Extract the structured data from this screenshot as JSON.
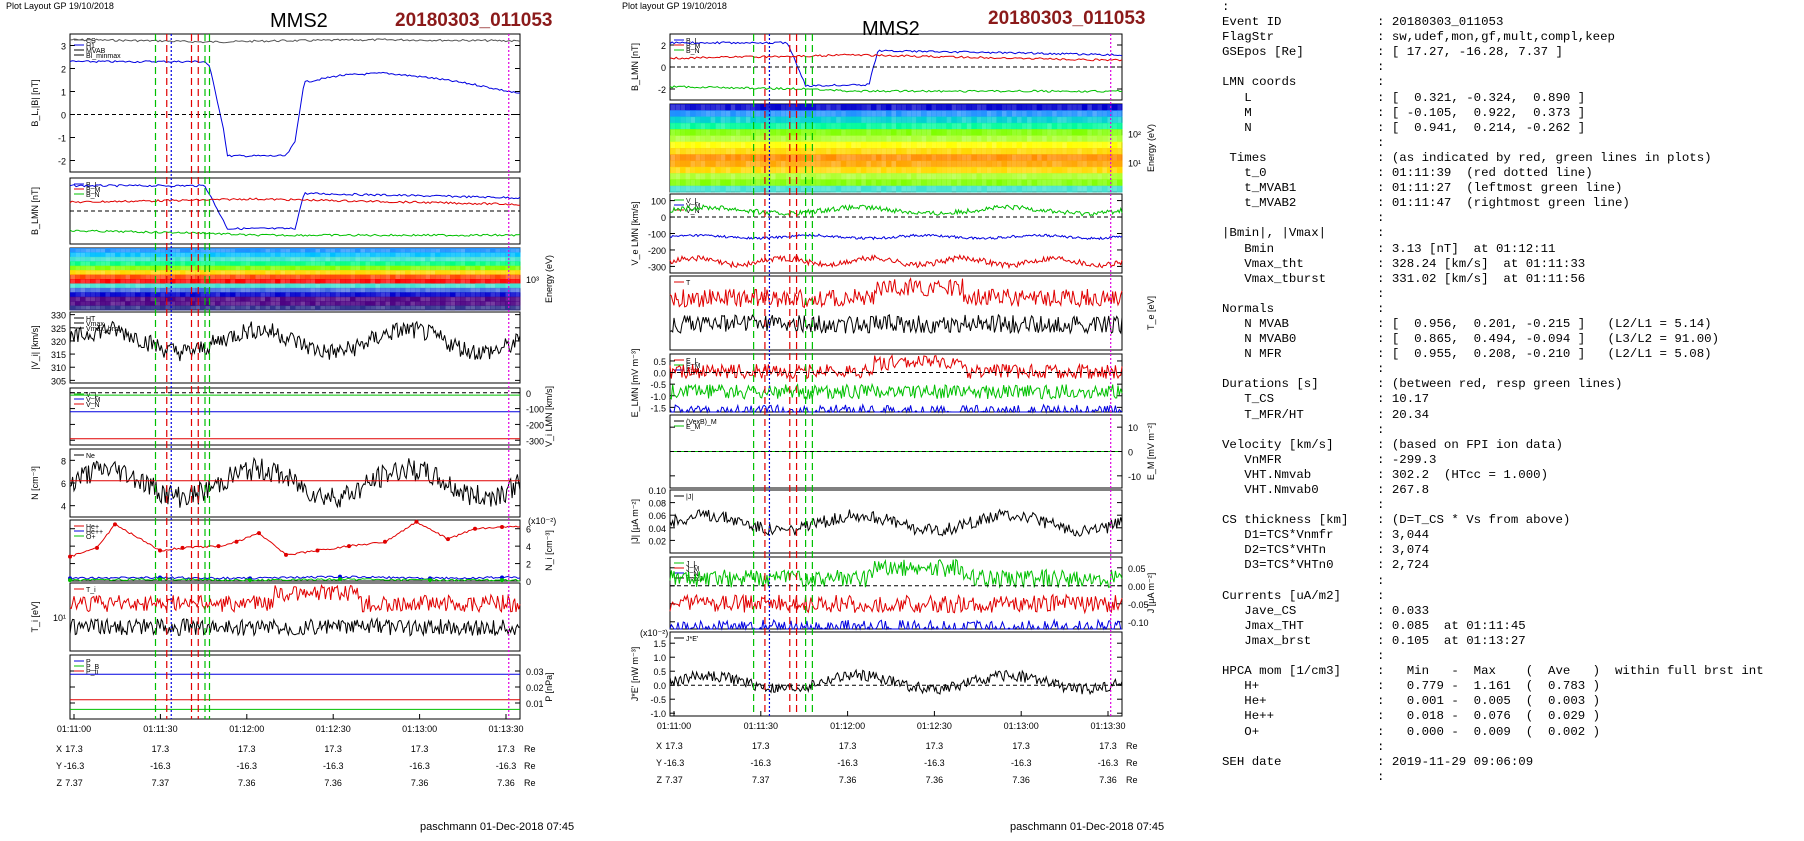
{
  "left_panel": {
    "header": "Plot Layout GP 19/10/2018",
    "spacecraft": "MMS2",
    "event": "20180303_011053",
    "footer": "paschmann 01-Dec-2018 07:45",
    "time_ticks": [
      "01:11:00",
      "01:11:30",
      "01:12:00",
      "01:12:30",
      "01:13:00",
      "01:13:30"
    ],
    "ephem": [
      {
        "label": "X",
        "values": [
          "17.3",
          "17.3",
          "17.3",
          "17.3",
          "17.3",
          "17.3"
        ],
        "unit": "Re"
      },
      {
        "label": "Y",
        "values": [
          "-16.3",
          "-16.3",
          "-16.3",
          "-16.3",
          "-16.3",
          "-16.3"
        ],
        "unit": "Re"
      },
      {
        "label": "Z",
        "values": [
          "7.37",
          "7.37",
          "7.36",
          "7.36",
          "7.36",
          "7.36"
        ],
        "unit": "Re"
      }
    ]
  },
  "right_panel": {
    "header": "Plot layout GP 19/10/2018",
    "spacecraft": "MMS2",
    "event": "20180303_011053",
    "footer": "paschmann 01-Dec-2018 07:45",
    "time_ticks": [
      "01:11:00",
      "01:11:30",
      "01:12:00",
      "01:12:30",
      "01:13:00",
      "01:13:30"
    ],
    "ephem": [
      {
        "label": "X",
        "values": [
          "17.3",
          "17.3",
          "17.3",
          "17.3",
          "17.3",
          "17.3"
        ],
        "unit": "Re"
      },
      {
        "label": "Y",
        "values": [
          "-16.3",
          "-16.3",
          "-16.3",
          "-16.3",
          "-16.3",
          "-16.3"
        ],
        "unit": "Re"
      },
      {
        "label": "Z",
        "values": [
          "7.37",
          "7.37",
          "7.36",
          "7.36",
          "7.36",
          "7.36"
        ],
        "unit": "Re"
      }
    ]
  },
  "summary": [
    [
      ":",
      ""
    ],
    [
      "Event ID",
      ": 20180303_011053"
    ],
    [
      "FlagStr",
      ": sw,udef,mon,gf,mult,compl,keep"
    ],
    [
      "GSEpos [Re]",
      ": [ 17.27, -16.28, 7.37 ]"
    ],
    [
      "",
      ":"
    ],
    [
      "LMN coords",
      ":"
    ],
    [
      "   L",
      ": [  0.321, -0.324,  0.890 ]"
    ],
    [
      "   M",
      ": [ -0.105,  0.922,  0.373 ]"
    ],
    [
      "   N",
      ": [  0.941,  0.214, -0.262 ]"
    ],
    [
      "",
      ":"
    ],
    [
      " Times",
      ": (as indicated by red, green lines in plots)"
    ],
    [
      "   t_0",
      ": 01:11:39  (red dotted line)"
    ],
    [
      "   t_MVAB1",
      ": 01:11:27  (leftmost green line)"
    ],
    [
      "   t_MVAB2",
      ": 01:11:47  (rightmost green line)"
    ],
    [
      "",
      ":"
    ],
    [
      "|Bmin|, |Vmax|",
      ":"
    ],
    [
      "   Bmin",
      ": 3.13 [nT]  at 01:12:11"
    ],
    [
      "   Vmax_tht",
      ": 328.24 [km/s]  at 01:11:33"
    ],
    [
      "   Vmax_tburst",
      ": 331.02 [km/s]  at 01:11:56"
    ],
    [
      "",
      ":"
    ],
    [
      "Normals",
      ":"
    ],
    [
      "   N MVAB",
      ": [  0.956,  0.201, -0.215 ]   (L2/L1 = 5.14)"
    ],
    [
      "   N MVAB0",
      ": [  0.865,  0.494, -0.094 ]   (L3/L2 = 91.00)"
    ],
    [
      "   N MFR",
      ": [  0.955,  0.208, -0.210 ]   (L2/L1 = 5.08)"
    ],
    [
      "",
      ":"
    ],
    [
      "Durations [s]",
      ": (between red, resp green lines)"
    ],
    [
      "   T_CS",
      ": 10.17"
    ],
    [
      "   T_MFR/HT",
      ": 20.34"
    ],
    [
      "",
      ":"
    ],
    [
      "Velocity [km/s]",
      ": (based on FPI ion data)"
    ],
    [
      "   VnMFR",
      ": -299.3"
    ],
    [
      "   VHT.Nmvab",
      ": 302.2  (HTcc = 1.000)"
    ],
    [
      "   VHT.Nmvab0",
      ": 267.8"
    ],
    [
      "",
      ":"
    ],
    [
      "CS thickness [km]",
      ": (D=T_CS * Vs from above)"
    ],
    [
      "   D1=TCS*Vnmfr",
      ": 3,044"
    ],
    [
      "   D2=TCS*VHTn",
      ": 3,074"
    ],
    [
      "   D3=TCS*VHTn0",
      ": 2,724"
    ],
    [
      "",
      ":"
    ],
    [
      "Currents [uA/m2]",
      ":"
    ],
    [
      "   Jave_CS",
      ": 0.033"
    ],
    [
      "   Jmax_THT",
      ": 0.085  at 01:11:45"
    ],
    [
      "   Jmax_brst",
      ": 0.105  at 01:13:27"
    ],
    [
      "",
      ":"
    ],
    [
      "HPCA mom [1/cm3]",
      ":   Min   -  Max    (  Ave   )  within full brst int"
    ],
    [
      "   H+",
      ":   0.779 -  1.161  (  0.783 )"
    ],
    [
      "   He+",
      ":   0.001 -  0.005  (  0.003 )"
    ],
    [
      "   He++",
      ":   0.018 -  0.076  (  0.029 )"
    ],
    [
      "   O+",
      ":   0.000 -  0.009  (  0.002 )"
    ],
    [
      "",
      ":"
    ],
    [
      "SEH date",
      ": 2019-11-29 09:06:09"
    ],
    [
      "",
      ":"
    ]
  ],
  "colors": {
    "red": "#e00000",
    "blue": "#0000e0",
    "green": "#00c000",
    "black": "#000000",
    "gray": "#555555",
    "magenta": "#e000e0",
    "title_red": "#8b1a1a"
  },
  "chart_data": [
    {
      "type": "line",
      "panel": "left",
      "ylabel": "B_L,|B| [nT]",
      "ylim": [
        -2.5,
        3.5
      ],
      "yticks": [
        "-2",
        "-1",
        "0",
        "1",
        "2",
        "3"
      ],
      "legend": [
        "CS",
        "H1",
        "MVAB",
        "Bl_minmax"
      ],
      "series": [
        {
          "name": "|B|",
          "color": "gray",
          "x": [
            0,
            0.2,
            0.3,
            0.45,
            0.7,
            1.0
          ],
          "y": [
            3.25,
            3.2,
            3.15,
            3.2,
            3.25,
            3.2
          ]
        },
        {
          "name": "B_L",
          "color": "blue",
          "x": [
            0,
            0.3,
            0.31,
            0.34,
            0.35,
            0.48,
            0.5,
            0.52,
            0.6,
            0.7,
            0.8,
            0.9,
            1.0
          ],
          "y": [
            2.3,
            2.3,
            2.1,
            -0.5,
            -1.8,
            -1.8,
            -1.2,
            1.4,
            1.7,
            1.8,
            1.6,
            1.3,
            0.9
          ]
        }
      ]
    },
    {
      "type": "line",
      "panel": "left",
      "ylabel": "B_LMN [nT]",
      "ylim": [
        -3,
        3
      ],
      "legend": [
        "B_L",
        "B_M",
        "B_N"
      ],
      "series": [
        {
          "name": "B_L",
          "color": "blue",
          "x": [
            0,
            0.3,
            0.35,
            0.5,
            0.52,
            1.0
          ],
          "y": [
            2.3,
            2.3,
            -1.6,
            -1.6,
            1.6,
            1.2
          ]
        },
        {
          "name": "B_M",
          "color": "red",
          "x": [
            0,
            0.3,
            0.4,
            1.0
          ],
          "y": [
            0.8,
            1.0,
            1.1,
            0.6
          ]
        },
        {
          "name": "B_N",
          "color": "green",
          "x": [
            0,
            0.3,
            0.4,
            1.0
          ],
          "y": [
            -1.8,
            -2.0,
            -2.2,
            -2.2
          ]
        }
      ]
    },
    {
      "type": "heatmap",
      "panel": "left",
      "ylabel": "Energy (eV)",
      "yticks": [
        "10³"
      ]
    },
    {
      "type": "line",
      "panel": "left",
      "ylabel": "|V_i| [km/s]",
      "ylim": [
        304,
        331
      ],
      "yticks": [
        "305",
        "310",
        "315",
        "320",
        "325",
        "330"
      ],
      "legend": [
        "HT",
        "Vmax",
        "Vmax_brst"
      ],
      "series": [
        {
          "name": "|V_i|",
          "color": "black",
          "mean": 320,
          "amp": 7
        }
      ]
    },
    {
      "type": "line",
      "panel": "left",
      "ylabel": "V_i LMN [km/s]",
      "ylim": [
        -330,
        30
      ],
      "yticks": [
        "0",
        "-100",
        "-200",
        "-300"
      ],
      "legend": [
        "V_L",
        "V_M",
        "V_N"
      ],
      "series": [
        {
          "name": "V_L",
          "color": "green",
          "mean": -15
        },
        {
          "name": "V_M",
          "color": "blue",
          "mean": -120
        },
        {
          "name": "V_N",
          "color": "red",
          "mean": -290
        }
      ]
    },
    {
      "type": "line",
      "panel": "left",
      "ylabel": "N [cm⁻³]",
      "ylim": [
        3,
        9
      ],
      "yticks": [
        "4",
        "6",
        "8"
      ],
      "legend": [
        "Ne"
      ],
      "series": [
        {
          "name": "N_i",
          "color": "black",
          "mean": 6,
          "amp": 2
        },
        {
          "name": "Ne",
          "color": "red",
          "mean": 6.2
        }
      ]
    },
    {
      "type": "line",
      "panel": "left",
      "ylabel": "N_i [cm⁻³]",
      "yunit": "(x10⁻²)",
      "ylim": [
        0,
        7
      ],
      "yticks": [
        "0",
        "2",
        "4",
        "6"
      ],
      "legend": [
        "He+",
        "He++",
        "O+"
      ],
      "series": [
        {
          "name": "He++",
          "color": "red",
          "x": [
            0.0,
            0.06,
            0.1,
            0.2,
            0.25,
            0.33,
            0.37,
            0.42,
            0.48,
            0.55,
            0.62,
            0.7,
            0.77,
            0.84,
            0.9,
            0.96
          ],
          "y": [
            2.8,
            3.8,
            6.5,
            3.5,
            3.8,
            4.0,
            4.5,
            5.5,
            3.0,
            3.5,
            4.0,
            4.5,
            6.8,
            4.8,
            6.0,
            6.2
          ]
        },
        {
          "name": "O+",
          "color": "blue",
          "x": [
            0,
            0.2,
            0.4,
            0.6,
            0.8,
            0.96
          ],
          "y": [
            0.3,
            0.4,
            0.3,
            0.5,
            0.3,
            0.4
          ]
        },
        {
          "name": "He+",
          "color": "green",
          "x": [
            0,
            0.2,
            0.4,
            0.6,
            0.8,
            0.96
          ],
          "y": [
            0.1,
            0.2,
            0.1,
            0.2,
            0.1,
            0.1
          ]
        }
      ]
    },
    {
      "type": "line",
      "panel": "left",
      "ylabel": "T_i [eV]",
      "yticks": [
        "10¹"
      ],
      "legend": [
        "T_i"
      ],
      "series": [
        {
          "name": "T_i",
          "color": "red"
        },
        {
          "color": "black"
        }
      ]
    },
    {
      "type": "line",
      "panel": "left",
      "ylabel": "P [nPa]",
      "ylim": [
        0.0,
        0.04
      ],
      "yticks": [
        "0.01",
        "0.02",
        "0.03"
      ],
      "legend": [
        "P",
        "P_B",
        "P_ti"
      ],
      "series": [
        {
          "color": "blue",
          "mean": 0.028
        },
        {
          "color": "green",
          "mean": 0.006
        },
        {
          "color": "red",
          "mean": 0.012
        }
      ]
    },
    {
      "type": "line",
      "panel": "right",
      "ylabel": "B_LMN [nT]",
      "ylim": [
        -3,
        3
      ],
      "yticks": [
        "-2",
        "0",
        "2"
      ],
      "legend": [
        "B_L",
        "B_M",
        "B_N"
      ],
      "series": [
        {
          "name": "B_L",
          "color": "blue",
          "x": [
            0,
            0.26,
            0.3,
            0.44,
            0.46,
            1.0
          ],
          "y": [
            2.2,
            2.2,
            -1.7,
            -1.6,
            1.5,
            1.1
          ]
        },
        {
          "name": "B_M",
          "color": "red",
          "x": [
            0,
            0.3,
            0.4,
            1.0
          ],
          "y": [
            0.8,
            1.0,
            1.1,
            0.6
          ]
        },
        {
          "name": "B_N",
          "color": "green",
          "x": [
            0,
            0.3,
            0.4,
            1.0
          ],
          "y": [
            -1.8,
            -2.0,
            -2.2,
            -2.2
          ]
        }
      ]
    },
    {
      "type": "heatmap",
      "panel": "right",
      "ylabel": "Energy (eV)",
      "yticks": [
        "10²",
        "10¹"
      ]
    },
    {
      "type": "line",
      "panel": "right",
      "ylabel": "V_e LMN [km/s]",
      "ylim": [
        -340,
        140
      ],
      "yticks": [
        "100",
        "0",
        "-100",
        "-200",
        "-300"
      ],
      "legend": [
        "V_L",
        "V_M",
        "V_N"
      ],
      "series": [
        {
          "name": "V_L",
          "color": "green",
          "mean": 40,
          "amp": 30
        },
        {
          "name": "V_M",
          "color": "blue",
          "mean": -120,
          "amp": 15
        },
        {
          "name": "V_N",
          "color": "red",
          "mean": -270,
          "amp": 35
        }
      ]
    },
    {
      "type": "line",
      "panel": "right",
      "ylabel": "T_e [eV]",
      "legend": [
        "T"
      ],
      "series": [
        {
          "color": "red"
        },
        {
          "color": "black"
        }
      ]
    },
    {
      "type": "line",
      "panel": "right",
      "ylabel": "E_LMN [mV m⁻³]",
      "ylim": [
        -1.7,
        0.8
      ],
      "yticks": [
        "0.5",
        "0.0",
        "-0.5",
        "-1.0",
        "-1.5"
      ],
      "legend": [
        "E_L",
        "E_M",
        "E_N"
      ],
      "series": [
        {
          "color": "red"
        },
        {
          "color": "green"
        },
        {
          "color": "blue"
        }
      ]
    },
    {
      "type": "line",
      "panel": "right",
      "ylabel": "E_M [mV m⁻²]",
      "ylim": [
        -15,
        15
      ],
      "yticks": [
        "10",
        "0",
        "-10"
      ],
      "legend": [
        "(VexB)_M",
        "E_M"
      ],
      "series": [
        {
          "color": "black",
          "mean": 0
        },
        {
          "color": "green",
          "mean": 0
        }
      ]
    },
    {
      "type": "line",
      "panel": "right",
      "ylabel": "|J| [μA m⁻²]",
      "ylim": [
        0.0,
        0.1
      ],
      "yticks": [
        "0.10",
        "0.08",
        "0.06",
        "0.04",
        "0.02"
      ],
      "legend": [
        "|J|"
      ],
      "series": [
        {
          "color": "black",
          "mean": 0.048,
          "amp": 0.02
        }
      ]
    },
    {
      "type": "line",
      "panel": "right",
      "ylabel": "J [μA m⁻²]",
      "ylim": [
        -0.12,
        0.08
      ],
      "yticks": [
        "0.05",
        "0.00",
        "-0.05",
        "-0.10"
      ],
      "legend": [
        "J_L",
        "J_M",
        "J_N",
        "maxJ"
      ],
      "series": [
        {
          "color": "green"
        },
        {
          "color": "red"
        },
        {
          "color": "blue"
        }
      ]
    },
    {
      "type": "line",
      "panel": "right",
      "ylabel": "J*E' [nW m⁻³]",
      "yunit": "(x10⁻²)",
      "ylim": [
        -1.1,
        1.9
      ],
      "yticks": [
        "1.5",
        "1.0",
        "0.5",
        "0.0",
        "-0.5",
        "-1.0"
      ],
      "legend": [
        "J*E'"
      ],
      "series": [
        {
          "color": "black",
          "mean": 0.1,
          "amp": 0.4
        }
      ]
    }
  ]
}
